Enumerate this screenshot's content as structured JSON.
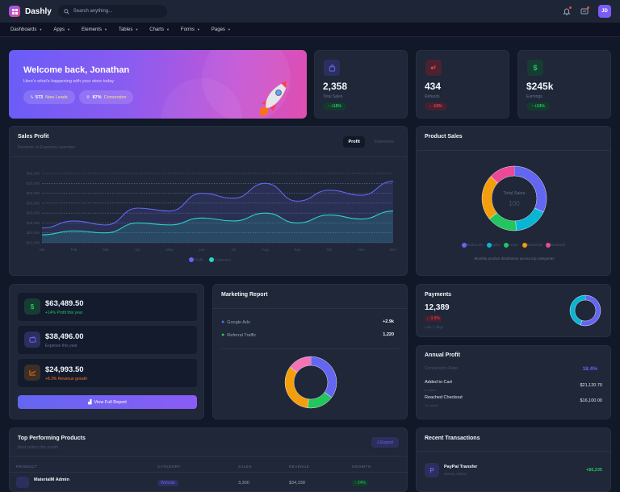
{
  "app": {
    "name": "Dashly",
    "search_placeholder": "Search anything...",
    "avatar_initials": "JD"
  },
  "nav": [
    "Dashboards",
    "Apps",
    "Elements",
    "Tables",
    "Charts",
    "Forms",
    "Pages"
  ],
  "welcome": {
    "title": "Welcome back, Jonathan",
    "subtitle": "Here's what's happening with your store today",
    "leads_value": "573",
    "leads_label": "New Leads",
    "conv_value": "87%",
    "conv_label": "Conversion"
  },
  "stats": [
    {
      "value": "2,358",
      "label": "Total Sales",
      "badge": "↑ +18%",
      "icon": "shopping-bag-icon",
      "color": "#6366f1"
    },
    {
      "value": "434",
      "label": "Refunds",
      "badge": "↓ -10%",
      "icon": "return-icon",
      "color": "#ef4444"
    },
    {
      "value": "$245k",
      "label": "Earnings",
      "badge": "↑ +24%",
      "icon": "dollar-icon",
      "color": "#22c55e"
    }
  ],
  "sales_profit": {
    "title": "Sales Profit",
    "subtitle": "Revenue vs Expenses overview",
    "tab_active": "Profit",
    "tab_inactive": "Expenses",
    "legend_profit": "Profit",
    "legend_expenses": "Expenses"
  },
  "chart_data": [
    {
      "type": "area",
      "title": "Sales Profit",
      "x": [
        "Jan",
        "Feb",
        "Mar",
        "Apr",
        "May",
        "Jun",
        "Jul",
        "Aug",
        "Sep",
        "Oct",
        "Nov",
        "Dec"
      ],
      "yticks": [
        "$80,000",
        "$70,000",
        "$60,000",
        "$50,000",
        "$40,000",
        "$30,000",
        "$20,000",
        "$10,000"
      ],
      "ylim": [
        10000,
        80000
      ],
      "grid": true,
      "legend_position": "bottom",
      "series": [
        {
          "name": "Profit",
          "color": "#6366f1",
          "values": [
            25000,
            32000,
            28000,
            45000,
            42000,
            60000,
            55000,
            70000,
            52000,
            63000,
            58000,
            72000
          ]
        },
        {
          "name": "Expenses",
          "color": "#2dd4bf",
          "values": [
            18000,
            22000,
            20000,
            30000,
            28000,
            35000,
            32000,
            40000,
            30000,
            38000,
            34000,
            42000
          ]
        }
      ]
    },
    {
      "type": "pie",
      "title": "Product Sales",
      "center_label": "Total Sales",
      "center_value": "100",
      "categories": [
        "Modernize",
        "Spike",
        "Ample",
        "MaterialM",
        "MatDash"
      ],
      "values": [
        32,
        17,
        15,
        23,
        13
      ],
      "colors": [
        "#6366f1",
        "#06b6d4",
        "#22c55e",
        "#f59e0b",
        "#ec4899"
      ],
      "caption": "Monthly product distribution across top categories"
    },
    {
      "type": "pie",
      "title": "Marketing Report",
      "values": [
        35,
        17,
        33,
        15
      ],
      "colors": [
        "#6366f1",
        "#22c55e",
        "#f59e0b",
        "#f472b6"
      ]
    },
    {
      "type": "pie",
      "title": "Payments",
      "values": [
        55,
        45
      ],
      "colors": [
        "#6366f1",
        "#06b6d4"
      ]
    }
  ],
  "finance": [
    {
      "value": "$63,489.50",
      "sub": "+14% Profit this year",
      "color": "#22c55e"
    },
    {
      "value": "$38,496.00",
      "sub": "Expense this year",
      "color": "#6366f1"
    },
    {
      "value": "$24,993.50",
      "sub": "+8.3% Revenue growth",
      "color": "#f97316"
    }
  ],
  "finance_button": "View Full Report",
  "marketing": {
    "title": "Marketing Report",
    "rows": [
      {
        "label": "Google Ads",
        "value": "+2.9k"
      },
      {
        "label": "Referral Traffic",
        "value": "1,220"
      }
    ]
  },
  "payments": {
    "title": "Payments",
    "value": "12,389",
    "badge": "↓ -3.8%",
    "period": "Last 7 days"
  },
  "annual": {
    "title": "Annual Profit",
    "conv_label": "Conversion Rate",
    "conv_value": "18.4%",
    "rows": [
      {
        "label": "Added to Cart",
        "sub": "5 orders",
        "value": "$21,120.70"
      },
      {
        "label": "Reached Checkout",
        "sub": "15 orders",
        "value": "$16,100.00"
      }
    ]
  },
  "products": {
    "title": "Top Performing Products",
    "subtitle": "Best sellers this month",
    "export": "Export",
    "columns": [
      "PRODUCT",
      "CATEGORY",
      "SALES",
      "REVENUE",
      "GROWTH"
    ],
    "rows": [
      {
        "name": "MaterialM Admin",
        "category": "Website",
        "sales": "3,300",
        "revenue": "$34,338",
        "growth": "↑ 24%"
      }
    ]
  },
  "transactions": {
    "title": "Recent Transactions",
    "items": [
      {
        "name": "PayPal Transfer",
        "sub": "Money Added",
        "amount": "+$6,235"
      }
    ]
  }
}
